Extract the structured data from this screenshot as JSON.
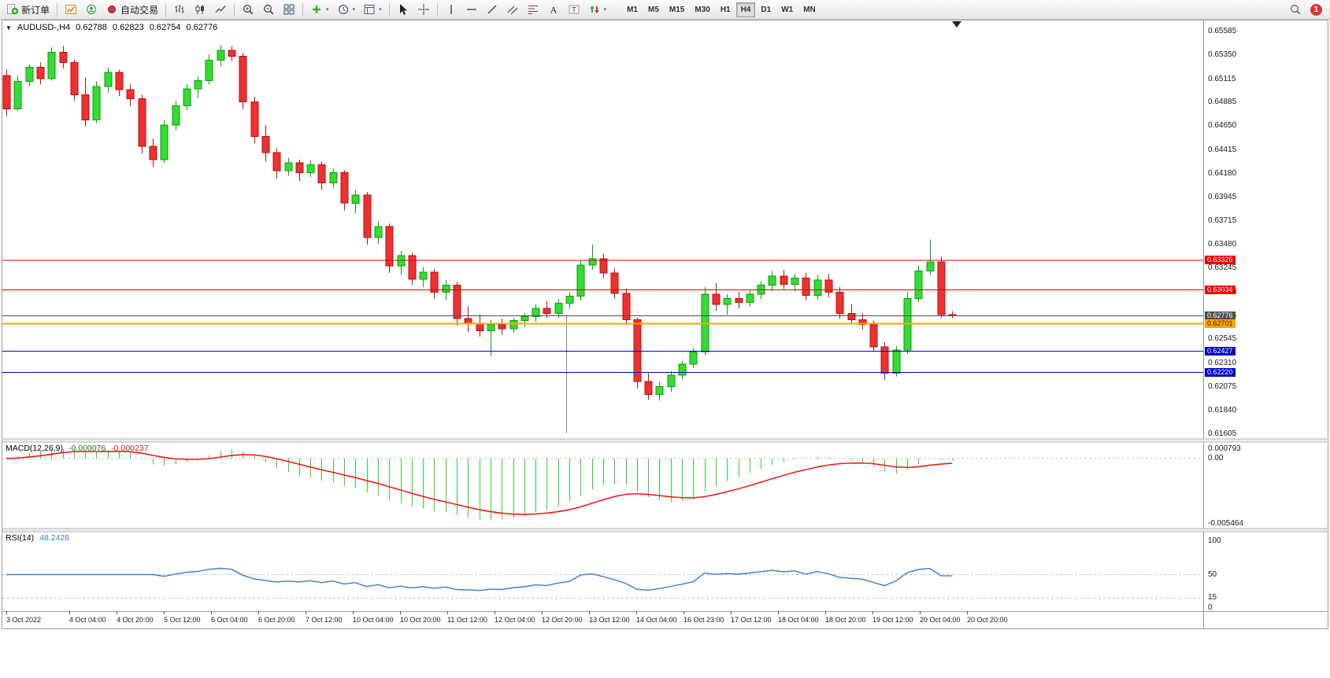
{
  "toolbar": {
    "new_order_label": "新订单",
    "autotrading_label": "自动交易",
    "timeframes": [
      "M1",
      "M5",
      "M15",
      "M30",
      "H1",
      "H4",
      "D1",
      "W1",
      "MN"
    ],
    "active_timeframe": "H4",
    "notification_count": "1"
  },
  "chart": {
    "title": "AUDUSD-,H4",
    "ohlc": {
      "open": "0.62788",
      "high": "0.62823",
      "low": "0.62754",
      "close": "0.62776"
    },
    "price_axis": [
      "0.65585",
      "0.65350",
      "0.65115",
      "0.64885",
      "0.64650",
      "0.64415",
      "0.64180",
      "0.63945",
      "0.63715",
      "0.63480",
      "0.63245",
      "0.63010",
      "0.62775",
      "0.62545",
      "0.62310",
      "0.62075",
      "0.61840",
      "0.61605"
    ],
    "hlines": [
      {
        "label": "0.63326",
        "price": 0.63326,
        "color": "#ee0000",
        "text_color": "#ffffff",
        "width": 1
      },
      {
        "label": "0.63034",
        "price": 0.63034,
        "color": "#ee0000",
        "text_color": "#ffffff",
        "width": 1
      },
      {
        "label": "0.62776",
        "price": 0.62776,
        "color": "#4d4d4d",
        "text_color": "#ffffff",
        "width": 1,
        "role": "current-price"
      },
      {
        "label": "0.62701",
        "price": 0.62701,
        "color": "#ffa500",
        "text_color": "#3a2a00",
        "width": 2
      },
      {
        "label": "0.62427",
        "price": 0.62427,
        "color": "#0000cc",
        "text_color": "#ffffff",
        "width": 1
      },
      {
        "label": "0.62220",
        "price": 0.6222,
        "color": "#0000cc",
        "text_color": "#ffffff",
        "width": 1
      }
    ],
    "time_axis": [
      "3 Oct 2022",
      "4 Oct 04:00",
      "4 Oct 20:00",
      "5 Oct 12:00",
      "6 Oct 04:00",
      "6 Oct 20:00",
      "7 Oct 12:00",
      "10 Oct 04:00",
      "10 Oct 20:00",
      "11 Oct 12:00",
      "12 Oct 04:00",
      "12 Oct 20:00",
      "13 Oct 12:00",
      "14 Oct 04:00",
      "16 Oct 23:00",
      "17 Oct 12:00",
      "18 Oct 04:00",
      "18 Oct 20:00",
      "19 Oct 12:00",
      "20 Oct 04:00",
      "20 Oct 20:00"
    ]
  },
  "indicators": {
    "macd": {
      "label": "MACD(12,26,9)",
      "value_main": "-0.000076",
      "value_signal": "-0.000237",
      "axis": [
        "0.000793",
        "0.00",
        "-0.005464"
      ],
      "histogram_color": "#2fd12f",
      "signal_color": "#ff0000"
    },
    "rsi": {
      "label": "RSI(14)",
      "value": "48.2428",
      "axis": [
        "100",
        "50",
        "15",
        "0"
      ],
      "line_color": "#3d7ccd"
    }
  },
  "chart_data": {
    "type": "candlestick",
    "symbol": "AUDUSD-",
    "period": "H4",
    "up_color": "#33dd33",
    "up_border": "#0e9b0e",
    "down_color": "#f03030",
    "down_border": "#b51010",
    "price_range": [
      0.6157,
      0.65686
    ],
    "macd_range": [
      -0.005464,
      0.000793
    ],
    "rsi_range": [
      0,
      100
    ],
    "vline": {
      "index": 49.7,
      "price_top": 0.6279,
      "price_bottom": 0.6162
    },
    "candles": [
      [
        0.6515,
        0.6521,
        0.6475,
        0.6482
      ],
      [
        0.6482,
        0.6515,
        0.648,
        0.6509
      ],
      [
        0.6509,
        0.6526,
        0.6504,
        0.6523
      ],
      [
        0.6523,
        0.6528,
        0.6506,
        0.6512
      ],
      [
        0.6512,
        0.6543,
        0.651,
        0.6538
      ],
      [
        0.6538,
        0.6544,
        0.6522,
        0.6528
      ],
      [
        0.6528,
        0.6531,
        0.649,
        0.6496
      ],
      [
        0.6496,
        0.6513,
        0.6465,
        0.6471
      ],
      [
        0.6471,
        0.6509,
        0.6468,
        0.6504
      ],
      [
        0.6504,
        0.6523,
        0.6498,
        0.6518
      ],
      [
        0.6518,
        0.6521,
        0.6495,
        0.6501
      ],
      [
        0.6501,
        0.6507,
        0.6485,
        0.6492
      ],
      [
        0.6492,
        0.6496,
        0.6438,
        0.6445
      ],
      [
        0.6445,
        0.6453,
        0.6425,
        0.6432
      ],
      [
        0.6432,
        0.6471,
        0.6429,
        0.6466
      ],
      [
        0.6466,
        0.649,
        0.6461,
        0.6485
      ],
      [
        0.6485,
        0.6507,
        0.6481,
        0.6502
      ],
      [
        0.6502,
        0.6514,
        0.6493,
        0.651
      ],
      [
        0.651,
        0.6536,
        0.6506,
        0.653
      ],
      [
        0.653,
        0.6545,
        0.6524,
        0.654
      ],
      [
        0.654,
        0.6544,
        0.6529,
        0.6534
      ],
      [
        0.6534,
        0.6537,
        0.6482,
        0.6489
      ],
      [
        0.6489,
        0.6494,
        0.6448,
        0.6455
      ],
      [
        0.6455,
        0.6466,
        0.643,
        0.6439
      ],
      [
        0.6439,
        0.6443,
        0.6413,
        0.6421
      ],
      [
        0.6421,
        0.6434,
        0.6416,
        0.6429
      ],
      [
        0.6429,
        0.6432,
        0.6411,
        0.6419
      ],
      [
        0.6419,
        0.6431,
        0.6415,
        0.6427
      ],
      [
        0.6427,
        0.643,
        0.6402,
        0.6409
      ],
      [
        0.6409,
        0.6423,
        0.6404,
        0.6419
      ],
      [
        0.6419,
        0.6422,
        0.6382,
        0.6389
      ],
      [
        0.6389,
        0.6402,
        0.6379,
        0.6397
      ],
      [
        0.6397,
        0.64,
        0.6348,
        0.6355
      ],
      [
        0.6355,
        0.6371,
        0.6349,
        0.6366
      ],
      [
        0.6366,
        0.6369,
        0.632,
        0.6327
      ],
      [
        0.6327,
        0.6342,
        0.6318,
        0.6337
      ],
      [
        0.6337,
        0.634,
        0.6308,
        0.6314
      ],
      [
        0.6314,
        0.6326,
        0.6306,
        0.6321
      ],
      [
        0.6321,
        0.6324,
        0.6295,
        0.6301
      ],
      [
        0.6301,
        0.6313,
        0.6293,
        0.6308
      ],
      [
        0.6308,
        0.6311,
        0.6268,
        0.6275
      ],
      [
        0.6275,
        0.6287,
        0.6262,
        0.627
      ],
      [
        0.627,
        0.6279,
        0.6257,
        0.6263
      ],
      [
        0.6263,
        0.6274,
        0.6238,
        0.6269
      ],
      [
        0.6269,
        0.6275,
        0.6259,
        0.6265
      ],
      [
        0.6265,
        0.6276,
        0.6261,
        0.6273
      ],
      [
        0.6273,
        0.628,
        0.6267,
        0.6277
      ],
      [
        0.6277,
        0.6289,
        0.6272,
        0.6285
      ],
      [
        0.6285,
        0.6292,
        0.6276,
        0.628
      ],
      [
        0.628,
        0.6294,
        0.6276,
        0.629
      ],
      [
        0.629,
        0.6301,
        0.6285,
        0.6297
      ],
      [
        0.6297,
        0.6333,
        0.6293,
        0.6328
      ],
      [
        0.6328,
        0.6348,
        0.6323,
        0.6334
      ],
      [
        0.6334,
        0.6339,
        0.6315,
        0.632
      ],
      [
        0.632,
        0.6325,
        0.6295,
        0.63
      ],
      [
        0.63,
        0.6305,
        0.6269,
        0.6274
      ],
      [
        0.6274,
        0.6276,
        0.6206,
        0.6213
      ],
      [
        0.6213,
        0.6221,
        0.6195,
        0.62
      ],
      [
        0.62,
        0.6212,
        0.6194,
        0.6208
      ],
      [
        0.6208,
        0.6223,
        0.6203,
        0.6219
      ],
      [
        0.6219,
        0.6233,
        0.6215,
        0.623
      ],
      [
        0.623,
        0.6246,
        0.6226,
        0.6242
      ],
      [
        0.6242,
        0.6306,
        0.6239,
        0.6299
      ],
      [
        0.6299,
        0.631,
        0.6283,
        0.6289
      ],
      [
        0.6289,
        0.6299,
        0.6279,
        0.6295
      ],
      [
        0.6295,
        0.6301,
        0.6285,
        0.6291
      ],
      [
        0.6291,
        0.6303,
        0.6287,
        0.6299
      ],
      [
        0.6299,
        0.6312,
        0.6294,
        0.6308
      ],
      [
        0.6308,
        0.6322,
        0.6302,
        0.6317
      ],
      [
        0.6317,
        0.6323,
        0.6304,
        0.6309
      ],
      [
        0.6309,
        0.6319,
        0.6302,
        0.6315
      ],
      [
        0.6315,
        0.632,
        0.6293,
        0.6298
      ],
      [
        0.6298,
        0.6318,
        0.6294,
        0.6313
      ],
      [
        0.6313,
        0.6319,
        0.6296,
        0.6301
      ],
      [
        0.6301,
        0.6306,
        0.6275,
        0.628
      ],
      [
        0.628,
        0.6289,
        0.627,
        0.6274
      ],
      [
        0.6274,
        0.628,
        0.6264,
        0.6269
      ],
      [
        0.6269,
        0.6273,
        0.6242,
        0.6247
      ],
      [
        0.6247,
        0.6252,
        0.6215,
        0.6221
      ],
      [
        0.6221,
        0.6248,
        0.6218,
        0.6244
      ],
      [
        0.6244,
        0.6301,
        0.624,
        0.6295
      ],
      [
        0.6295,
        0.6327,
        0.6291,
        0.6322
      ],
      [
        0.6322,
        0.6353,
        0.6318,
        0.6331
      ],
      [
        0.6331,
        0.6336,
        0.6276,
        0.6279
      ],
      [
        0.62788,
        0.62823,
        0.62754,
        0.62776
      ]
    ]
  }
}
